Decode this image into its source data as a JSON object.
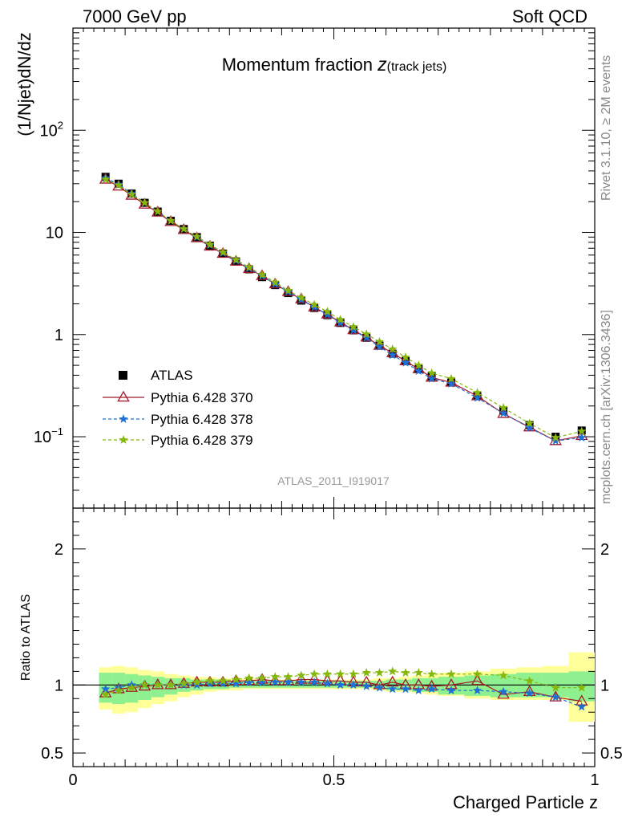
{
  "header": {
    "left": "7000 GeV pp",
    "right": "Soft QCD"
  },
  "side_text": {
    "top": "Rivet 3.1.10, ≥ 2M events",
    "bottom": "mcplots.cern.ch [arXiv:1306.3436]"
  },
  "colors": {
    "atlas": "#000000",
    "p370": "#a5182a",
    "p378": "#1e6fd6",
    "p379": "#86b70b",
    "band_outer": "#ffff99",
    "band_inner": "#8ef08e"
  },
  "chart_data": [
    {
      "type": "scatter",
      "title_main": "Momentum fraction ",
      "title_var": "z",
      "title_sub": "(track jets)",
      "ylabel": "(1/Njet)dN/dz",
      "watermark": "ATLAS_2011_I919017",
      "yscale": "log",
      "xlim": [
        0,
        1
      ],
      "ylim": [
        0.02,
        1000
      ],
      "y_ticks": [
        {
          "value": 0.1,
          "base": "10",
          "exp": "−1"
        },
        {
          "value": 1,
          "base": "1",
          "exp": ""
        },
        {
          "value": 10,
          "base": "10",
          "exp": ""
        },
        {
          "value": 100,
          "base": "10",
          "exp": "2"
        }
      ],
      "legend": [
        {
          "key": "atlas",
          "label": "ATLAS"
        },
        {
          "key": "p370",
          "label": "Pythia 6.428 370"
        },
        {
          "key": "p378",
          "label": "Pythia 6.428 378"
        },
        {
          "key": "p379",
          "label": "Pythia 6.428 379"
        }
      ],
      "x": [
        0.0625,
        0.0875,
        0.1125,
        0.1375,
        0.1625,
        0.1875,
        0.2125,
        0.2375,
        0.2625,
        0.2875,
        0.3125,
        0.3375,
        0.3625,
        0.3875,
        0.4125,
        0.4375,
        0.4625,
        0.4875,
        0.5125,
        0.5375,
        0.5625,
        0.5875,
        0.6125,
        0.6375,
        0.6625,
        0.6875,
        0.725,
        0.775,
        0.825,
        0.875,
        0.925,
        0.975
      ],
      "series": [
        {
          "key": "atlas",
          "name": "ATLAS",
          "values": [
            35,
            30,
            24,
            19.5,
            16,
            13,
            10.8,
            9,
            7.4,
            6.2,
            5.2,
            4.35,
            3.65,
            3.05,
            2.55,
            2.15,
            1.82,
            1.55,
            1.3,
            1.1,
            0.93,
            0.78,
            0.65,
            0.55,
            0.46,
            0.39,
            0.34,
            0.25,
            0.18,
            0.13,
            0.1,
            0.115
          ]
        },
        {
          "key": "p370",
          "name": "Pythia 6.428 370",
          "values": [
            33,
            28.2,
            23,
            18.8,
            15.7,
            12.7,
            10.6,
            8.8,
            7.3,
            6.2,
            5.2,
            4.4,
            3.75,
            3.12,
            2.62,
            2.22,
            1.85,
            1.58,
            1.32,
            1.11,
            0.94,
            0.78,
            0.66,
            0.55,
            0.46,
            0.38,
            0.34,
            0.25,
            0.168,
            0.124,
            0.091,
            0.102
          ]
        },
        {
          "key": "p378",
          "name": "Pythia 6.428 378",
          "values": [
            34,
            29.5,
            24,
            19.5,
            16,
            13,
            10.8,
            9,
            7.5,
            6.3,
            5.3,
            4.45,
            3.75,
            3.12,
            2.62,
            2.2,
            1.85,
            1.57,
            1.3,
            1.1,
            0.93,
            0.76,
            0.63,
            0.53,
            0.44,
            0.37,
            0.33,
            0.24,
            0.17,
            0.122,
            0.091,
            0.098
          ]
        },
        {
          "key": "p379",
          "name": "Pythia 6.428 379",
          "values": [
            33,
            29,
            23.5,
            19.5,
            16,
            13,
            10.8,
            9.1,
            7.6,
            6.4,
            5.4,
            4.55,
            3.85,
            3.25,
            2.7,
            2.3,
            1.96,
            1.68,
            1.4,
            1.19,
            1.01,
            0.85,
            0.72,
            0.6,
            0.5,
            0.42,
            0.37,
            0.27,
            0.192,
            0.135,
            0.098,
            0.113
          ]
        }
      ]
    },
    {
      "type": "line",
      "ylabel": "Ratio to ATLAS",
      "xlabel": "Charged Particle z",
      "xlim": [
        0,
        1
      ],
      "ylim": [
        0.4,
        2.3
      ],
      "x_ticks": [
        {
          "value": 0,
          "label": "0"
        },
        {
          "value": 0.5,
          "label": "0.5"
        },
        {
          "value": 1,
          "label": "1"
        }
      ],
      "y_ticks": [
        {
          "value": 0.5,
          "label": "0.5"
        },
        {
          "value": 1,
          "label": "1"
        },
        {
          "value": 2,
          "label": "2"
        }
      ],
      "band": {
        "x_edges": [
          0.05,
          0.075,
          0.1,
          0.125,
          0.15,
          0.175,
          0.2,
          0.225,
          0.25,
          0.275,
          0.3,
          0.325,
          0.35,
          0.375,
          0.4,
          0.425,
          0.45,
          0.475,
          0.5,
          0.525,
          0.55,
          0.575,
          0.6,
          0.625,
          0.65,
          0.675,
          0.7,
          0.75,
          0.8,
          0.85,
          0.9,
          0.95,
          1.0
        ],
        "inner_low": [
          0.87,
          0.86,
          0.87,
          0.89,
          0.91,
          0.93,
          0.95,
          0.96,
          0.97,
          0.97,
          0.98,
          0.98,
          0.98,
          0.98,
          0.98,
          0.98,
          0.98,
          0.98,
          0.98,
          0.98,
          0.98,
          0.97,
          0.96,
          0.96,
          0.95,
          0.95,
          0.93,
          0.92,
          0.91,
          0.91,
          0.91,
          0.88
        ],
        "inner_high": [
          1.09,
          1.09,
          1.08,
          1.07,
          1.06,
          1.05,
          1.05,
          1.04,
          1.04,
          1.04,
          1.03,
          1.03,
          1.03,
          1.03,
          1.03,
          1.03,
          1.03,
          1.03,
          1.03,
          1.03,
          1.03,
          1.03,
          1.04,
          1.04,
          1.05,
          1.05,
          1.06,
          1.07,
          1.08,
          1.09,
          1.09,
          1.1
        ],
        "outer_low": [
          0.82,
          0.79,
          0.8,
          0.83,
          0.86,
          0.88,
          0.91,
          0.93,
          0.95,
          0.96,
          0.96,
          0.97,
          0.97,
          0.97,
          0.97,
          0.97,
          0.97,
          0.97,
          0.97,
          0.97,
          0.97,
          0.96,
          0.95,
          0.95,
          0.94,
          0.93,
          0.92,
          0.9,
          0.89,
          0.89,
          0.89,
          0.73
        ],
        "outer_high": [
          1.13,
          1.14,
          1.13,
          1.11,
          1.1,
          1.08,
          1.07,
          1.06,
          1.06,
          1.05,
          1.05,
          1.05,
          1.04,
          1.04,
          1.04,
          1.04,
          1.04,
          1.04,
          1.04,
          1.04,
          1.04,
          1.05,
          1.05,
          1.06,
          1.07,
          1.08,
          1.09,
          1.1,
          1.12,
          1.13,
          1.14,
          1.24
        ]
      },
      "series": [
        {
          "key": "p370",
          "name": "Pythia 6.428 370",
          "values": [
            0.94,
            0.97,
            0.98,
            0.99,
            1.0,
            1.0,
            1.01,
            1.02,
            1.02,
            1.02,
            1.03,
            1.03,
            1.04,
            1.03,
            1.03,
            1.04,
            1.04,
            1.03,
            1.03,
            1.02,
            1.02,
            1.0,
            1.02,
            1.0,
            1.0,
            0.99,
            1.0,
            1.03,
            0.93,
            0.95,
            0.91,
            0.88
          ]
        },
        {
          "key": "p378",
          "name": "Pythia 6.428 378",
          "values": [
            0.97,
            0.98,
            1.0,
            1.0,
            1.0,
            1.0,
            1.0,
            1.0,
            1.01,
            1.01,
            1.01,
            1.02,
            1.02,
            1.02,
            1.02,
            1.02,
            1.02,
            1.01,
            1.0,
            1.0,
            0.99,
            0.98,
            0.97,
            0.97,
            0.96,
            0.97,
            0.96,
            0.96,
            0.95,
            0.94,
            0.91,
            0.84
          ]
        },
        {
          "key": "p379",
          "name": "Pythia 6.428 379",
          "values": [
            0.93,
            0.96,
            0.98,
            1.0,
            1.0,
            1.0,
            1.01,
            1.02,
            1.03,
            1.03,
            1.04,
            1.05,
            1.05,
            1.06,
            1.06,
            1.07,
            1.08,
            1.08,
            1.08,
            1.08,
            1.09,
            1.09,
            1.1,
            1.09,
            1.09,
            1.08,
            1.08,
            1.08,
            1.07,
            1.03,
            0.98,
            0.98
          ]
        }
      ]
    }
  ]
}
